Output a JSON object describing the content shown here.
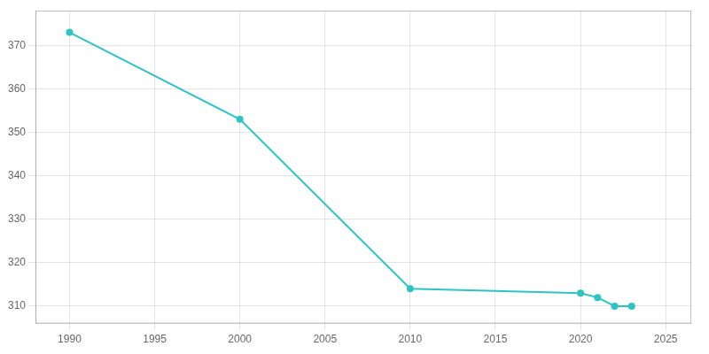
{
  "chart_data": {
    "type": "line",
    "x": [
      1990,
      2000,
      2010,
      2020,
      2021,
      2022,
      2023
    ],
    "values": [
      373,
      353,
      314,
      313,
      312,
      310,
      310
    ],
    "color": "#2EC4C4",
    "xlim": [
      1988,
      2026.5
    ],
    "ylim": [
      306,
      378
    ],
    "xticks": [
      1990,
      1995,
      2000,
      2005,
      2010,
      2015,
      2020,
      2025
    ],
    "yticks": [
      310,
      320,
      330,
      340,
      350,
      360,
      370
    ],
    "grid": true
  }
}
